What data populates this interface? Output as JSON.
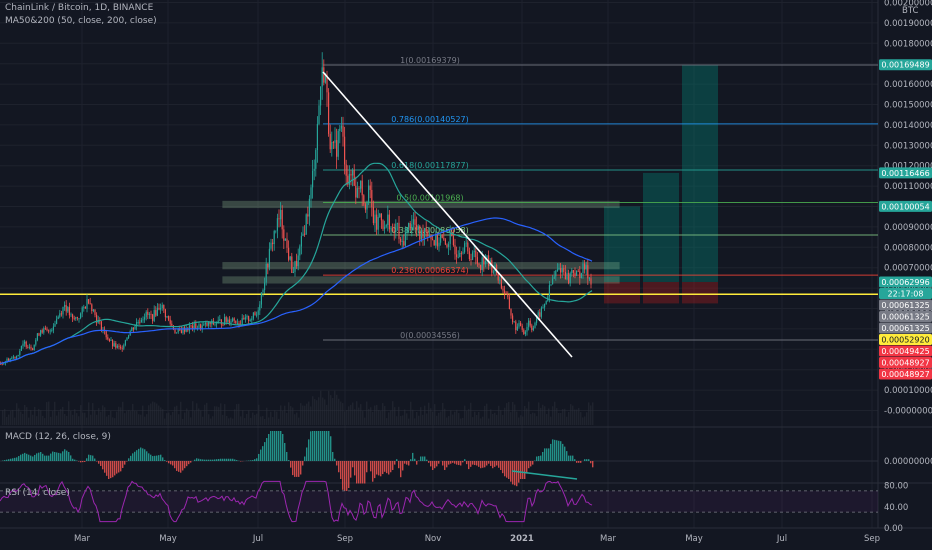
{
  "header": {
    "symbol": "ChainLink / Bitcoin, 1D, BINANCE",
    "indicator": "MA50&200 (50, close, 200, close)",
    "macd_label": "MACD (12, 26, close, 9)",
    "rsi_label": "RSI (14, close)"
  },
  "colors": {
    "background": "#131722",
    "up": "#26a69a",
    "down": "#ef5350",
    "ma50": "#26a69a",
    "ma200": "#2962ff",
    "trendline": "#ffffff",
    "support": "#ffeb3b",
    "zone": "#a5d6a7",
    "rsi": "#9c27b0",
    "target": "#00897b",
    "stop": "#b71c1c"
  },
  "chart_data": [
    {
      "type": "candlestick",
      "title": "ChainLink / Bitcoin, 1D, BINANCE",
      "currency": "BTC",
      "x_ticks": [
        "Mar",
        "May",
        "Jul",
        "Sep",
        "Nov",
        "2021",
        "Mar",
        "May",
        "Jul",
        "Sep"
      ],
      "y_ticks": [
        "0.00200000",
        "0.00190000",
        "0.00180000",
        "0.00170000",
        "0.00160000",
        "0.00150000",
        "0.00140000",
        "0.00130000",
        "0.00120000",
        "0.00110000",
        "0.00100000",
        "0.00090000",
        "0.00080000",
        "0.00070000",
        "0.00060000",
        "0.00050000",
        "0.00040000",
        "0.00030000",
        "0.00020000",
        "0.00010000",
        "-0.00000000"
      ],
      "ylim": [
        -1e-05,
        0.00201
      ],
      "price_path": [
        [
          0,
          0.00023
        ],
        [
          8,
          0.00025
        ],
        [
          16,
          0.00027
        ],
        [
          24,
          0.00033
        ],
        [
          32,
          0.00031
        ],
        [
          40,
          0.0004
        ],
        [
          48,
          0.00038
        ],
        [
          56,
          0.00045
        ],
        [
          64,
          0.00052
        ],
        [
          72,
          0.00044
        ],
        [
          80,
          0.00047
        ],
        [
          88,
          0.00055
        ],
        [
          96,
          0.00045
        ],
        [
          104,
          0.00038
        ],
        [
          112,
          0.00032
        ],
        [
          120,
          0.0003
        ],
        [
          128,
          0.00038
        ],
        [
          136,
          0.00043
        ],
        [
          144,
          0.00047
        ],
        [
          152,
          0.00046
        ],
        [
          160,
          0.00052
        ],
        [
          168,
          0.00044
        ],
        [
          176,
          0.00038
        ],
        [
          184,
          0.0004
        ],
        [
          192,
          0.00041
        ],
        [
          200,
          0.00041
        ],
        [
          208,
          0.00042
        ],
        [
          216,
          0.00043
        ],
        [
          224,
          0.00044
        ],
        [
          232,
          0.00045
        ],
        [
          240,
          0.00043
        ],
        [
          248,
          0.00045
        ],
        [
          256,
          0.00047
        ],
        [
          262,
          0.0006
        ],
        [
          268,
          0.00075
        ],
        [
          274,
          0.00088
        ],
        [
          280,
          0.00095
        ],
        [
          286,
          0.0008
        ],
        [
          292,
          0.00068
        ],
        [
          298,
          0.00075
        ],
        [
          304,
          0.0009
        ],
        [
          310,
          0.00105
        ],
        [
          316,
          0.00135
        ],
        [
          320,
          0.0016
        ],
        [
          324,
          0.00169
        ],
        [
          328,
          0.0014
        ],
        [
          332,
          0.00125
        ],
        [
          336,
          0.0013
        ],
        [
          340,
          0.0014
        ],
        [
          344,
          0.00125
        ],
        [
          348,
          0.0011
        ],
        [
          352,
          0.00118
        ],
        [
          356,
          0.00105
        ],
        [
          360,
          0.00115
        ],
        [
          364,
          0.001
        ],
        [
          368,
          0.0011
        ],
        [
          372,
          0.00095
        ],
        [
          376,
          0.0009
        ],
        [
          380,
          0.00098
        ],
        [
          384,
          0.00088
        ],
        [
          388,
          0.00095
        ],
        [
          392,
          0.00085
        ],
        [
          396,
          0.00092
        ],
        [
          400,
          0.0008
        ],
        [
          404,
          0.00085
        ],
        [
          408,
          0.0009
        ],
        [
          412,
          0.00094
        ],
        [
          416,
          0.00088
        ],
        [
          420,
          0.00085
        ],
        [
          424,
          0.0009
        ],
        [
          428,
          0.00088
        ],
        [
          432,
          0.00084
        ],
        [
          436,
          0.00082
        ],
        [
          440,
          0.00085
        ],
        [
          444,
          0.0008
        ],
        [
          448,
          0.00084
        ],
        [
          452,
          0.00082
        ],
        [
          456,
          0.00078
        ],
        [
          460,
          0.0008
        ],
        [
          464,
          0.00082
        ],
        [
          468,
          0.00075
        ],
        [
          472,
          0.00078
        ],
        [
          476,
          0.00073
        ],
        [
          480,
          0.00072
        ],
        [
          484,
          0.00075
        ],
        [
          488,
          0.00072
        ],
        [
          492,
          0.0007
        ],
        [
          496,
          0.00068
        ],
        [
          500,
          0.00062
        ],
        [
          504,
          0.00058
        ],
        [
          508,
          0.00052
        ],
        [
          512,
          0.00044
        ],
        [
          516,
          0.0004
        ],
        [
          520,
          0.00042
        ],
        [
          524,
          0.00038
        ],
        [
          528,
          0.00044
        ],
        [
          532,
          0.0004
        ],
        [
          536,
          0.00045
        ],
        [
          540,
          0.00048
        ],
        [
          544,
          0.00052
        ],
        [
          548,
          0.00058
        ],
        [
          552,
          0.00064
        ],
        [
          556,
          0.00068
        ],
        [
          560,
          0.0007
        ],
        [
          564,
          0.00068
        ],
        [
          568,
          0.00064
        ],
        [
          572,
          0.0007
        ],
        [
          576,
          0.00066
        ],
        [
          580,
          0.00068
        ],
        [
          584,
          0.0007
        ],
        [
          588,
          0.00066
        ],
        [
          592,
          0.00063
        ]
      ],
      "last_index": 592,
      "fib": [
        {
          "level": "1",
          "price": 0.00169379
        },
        {
          "level": "0.786",
          "price": 0.00140527
        },
        {
          "level": "0.618",
          "price": 0.00117877
        },
        {
          "level": "0.5",
          "price": 0.00101968
        },
        {
          "level": "0.382",
          "price": 0.00086058
        },
        {
          "level": "0.236",
          "price": 0.00066374
        },
        {
          "level": "0",
          "price": 0.00034556
        }
      ],
      "zones": [
        0.00101,
        0.00071,
        0.00064
      ],
      "support": 0.00057,
      "price_tags": [
        {
          "text": "0.00169489",
          "price": 0.00169489,
          "bg": "#26a69a",
          "fg": "#ffffff"
        },
        {
          "text": "0.00116466",
          "price": 0.00116466,
          "bg": "#26a69a",
          "fg": "#ffffff"
        },
        {
          "text": "0.00100054",
          "price": 0.00100054,
          "bg": "#26a69a",
          "fg": "#ffffff"
        },
        {
          "text": "0.00062996",
          "price": 0.00062996,
          "bg": "#26a69a",
          "fg": "#ffffff"
        },
        {
          "text": "22:17:08",
          "price": 0.0006,
          "bg": "#26a69a",
          "fg": "#ffffff"
        },
        {
          "text": "0.00061325",
          "price": 0.00057,
          "bg": "#787b86",
          "fg": "#ffffff"
        },
        {
          "text": "0.00061325",
          "price": 0.00054,
          "bg": "#787b86",
          "fg": "#ffffff"
        },
        {
          "text": "0.00061325",
          "price": 0.00051,
          "bg": "#787b86",
          "fg": "#ffffff"
        },
        {
          "text": "0.00052920",
          "price": 0.00048,
          "bg": "#ffeb3b",
          "fg": "#131722"
        },
        {
          "text": "0.00049425",
          "price": 0.00045,
          "bg": "#f23645",
          "fg": "#ffffff"
        },
        {
          "text": "0.00048927",
          "price": 0.00042,
          "bg": "#f23645",
          "fg": "#ffffff"
        },
        {
          "text": "0.00048927",
          "price": 0.00039,
          "bg": "#f23645",
          "fg": "#ffffff"
        }
      ]
    },
    {
      "type": "bar",
      "title": "MACD (12, 26, close, 9)",
      "y_ticks": [
        "0.00000000"
      ]
    },
    {
      "type": "line",
      "title": "RSI (14, close)",
      "y_ticks": [
        "80.00",
        "40.00",
        "0.00"
      ],
      "bands": [
        70,
        30
      ]
    }
  ]
}
